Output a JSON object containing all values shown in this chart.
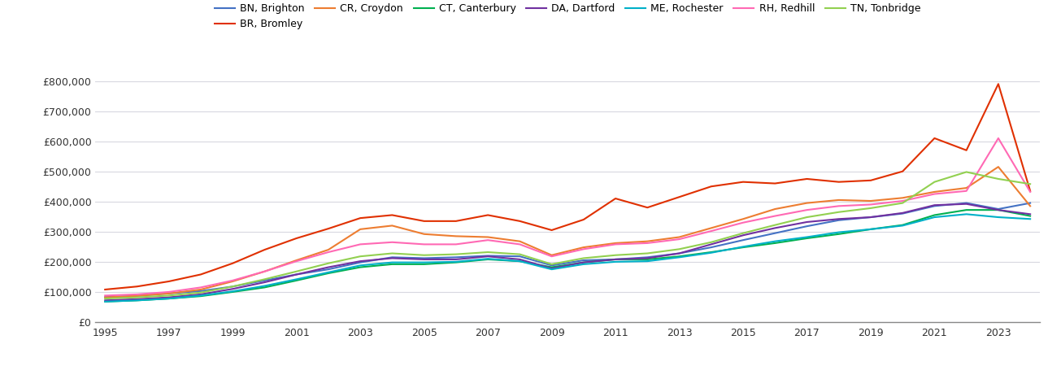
{
  "years": [
    1995,
    1996,
    1997,
    1998,
    1999,
    2000,
    2001,
    2002,
    2003,
    2004,
    2005,
    2006,
    2007,
    2008,
    2009,
    2010,
    2011,
    2012,
    2013,
    2014,
    2015,
    2016,
    2017,
    2018,
    2019,
    2020,
    2021,
    2022,
    2023,
    2024
  ],
  "series": {
    "BN, Brighton": {
      "color": "#4472c4",
      "values": [
        83000,
        87000,
        95000,
        103000,
        118000,
        138000,
        158000,
        175000,
        198000,
        215000,
        212000,
        215000,
        220000,
        218000,
        188000,
        205000,
        208000,
        215000,
        228000,
        248000,
        272000,
        295000,
        318000,
        338000,
        348000,
        360000,
        385000,
        395000,
        375000,
        395000
      ]
    },
    "BR, Bromley": {
      "color": "#e03000",
      "values": [
        108000,
        118000,
        135000,
        158000,
        195000,
        240000,
        278000,
        310000,
        345000,
        355000,
        335000,
        335000,
        355000,
        335000,
        305000,
        340000,
        410000,
        380000,
        415000,
        450000,
        465000,
        460000,
        475000,
        465000,
        470000,
        500000,
        610000,
        570000,
        790000,
        435000
      ]
    },
    "CR, Croydon": {
      "color": "#ed7d31",
      "values": [
        82000,
        87000,
        95000,
        108000,
        135000,
        168000,
        205000,
        240000,
        308000,
        320000,
        292000,
        285000,
        282000,
        268000,
        222000,
        248000,
        262000,
        268000,
        282000,
        312000,
        342000,
        375000,
        395000,
        405000,
        402000,
        412000,
        432000,
        445000,
        515000,
        385000
      ]
    },
    "CT, Canterbury": {
      "color": "#00b050",
      "values": [
        68000,
        72000,
        78000,
        86000,
        100000,
        115000,
        138000,
        162000,
        182000,
        192000,
        192000,
        198000,
        208000,
        202000,
        182000,
        198000,
        208000,
        208000,
        218000,
        232000,
        248000,
        262000,
        278000,
        292000,
        308000,
        322000,
        355000,
        372000,
        372000,
        352000
      ]
    },
    "DA, Dartford": {
      "color": "#7030a0",
      "values": [
        72000,
        76000,
        82000,
        92000,
        110000,
        132000,
        158000,
        182000,
        202000,
        212000,
        208000,
        208000,
        218000,
        208000,
        178000,
        198000,
        208000,
        212000,
        228000,
        258000,
        288000,
        312000,
        332000,
        342000,
        348000,
        362000,
        388000,
        392000,
        372000,
        358000
      ]
    },
    "ME, Rochester": {
      "color": "#00b0c8",
      "values": [
        68000,
        72000,
        78000,
        88000,
        102000,
        120000,
        142000,
        165000,
        188000,
        198000,
        198000,
        200000,
        210000,
        202000,
        175000,
        192000,
        200000,
        202000,
        215000,
        230000,
        250000,
        268000,
        282000,
        298000,
        308000,
        320000,
        348000,
        358000,
        348000,
        342000
      ]
    },
    "RH, Redhill": {
      "color": "#ff69b4",
      "values": [
        88000,
        92000,
        100000,
        115000,
        138000,
        168000,
        202000,
        232000,
        258000,
        265000,
        258000,
        258000,
        272000,
        258000,
        218000,
        242000,
        258000,
        262000,
        275000,
        302000,
        330000,
        352000,
        372000,
        385000,
        390000,
        402000,
        425000,
        435000,
        610000,
        432000
      ]
    },
    "TN, Tonbridge": {
      "color": "#92d050",
      "values": [
        78000,
        82000,
        88000,
        98000,
        118000,
        142000,
        168000,
        195000,
        218000,
        228000,
        222000,
        225000,
        232000,
        225000,
        192000,
        212000,
        222000,
        228000,
        242000,
        265000,
        295000,
        322000,
        348000,
        365000,
        378000,
        395000,
        465000,
        498000,
        475000,
        458000
      ]
    }
  },
  "ylim": [
    0,
    850000
  ],
  "yticks": [
    0,
    100000,
    200000,
    300000,
    400000,
    500000,
    600000,
    700000,
    800000
  ],
  "xticks": [
    1995,
    1997,
    1999,
    2001,
    2003,
    2005,
    2007,
    2009,
    2011,
    2013,
    2015,
    2017,
    2019,
    2021,
    2023
  ],
  "background_color": "#ffffff",
  "plot_bg_color": "#ffffff",
  "grid_color": "#d8d8e0",
  "legend_order": [
    "BN, Brighton",
    "BR, Bromley",
    "CR, Croydon",
    "CT, Canterbury",
    "DA, Dartford",
    "ME, Rochester",
    "RH, Redhill",
    "TN, Tonbridge"
  ]
}
